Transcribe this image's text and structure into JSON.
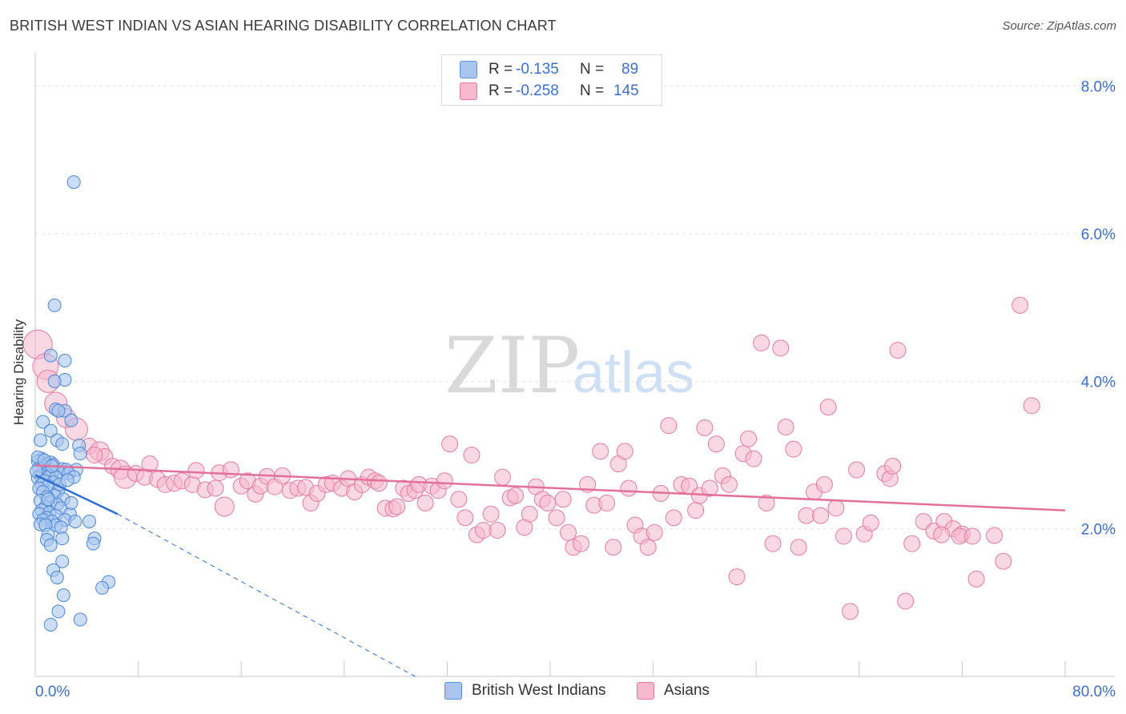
{
  "title": "BRITISH WEST INDIAN VS ASIAN HEARING DISABILITY CORRELATION CHART",
  "source": "Source: ZipAtlas.com",
  "watermark": {
    "zip": "ZIP",
    "atlas": "atlas"
  },
  "legend": {
    "rows": [
      {
        "r_label": "R =",
        "r_value": "-0.135",
        "n_label": "N =",
        "n_value": "89",
        "color": "#a9c6ef",
        "border": "#5a8fdc"
      },
      {
        "r_label": "R =",
        "r_value": "-0.258",
        "n_label": "N =",
        "n_value": "145",
        "color": "#f5b8cc",
        "border": "#e57aa0"
      }
    ]
  },
  "bottom_legend": [
    {
      "label": "British West Indians",
      "color": "#a9c6ef",
      "border": "#5a8fdc"
    },
    {
      "label": "Asians",
      "color": "#f5b8cc",
      "border": "#e57aa0"
    }
  ],
  "chart_data": {
    "type": "scatter",
    "title": "BRITISH WEST INDIAN VS ASIAN HEARING DISABILITY CORRELATION CHART",
    "xlabel": "",
    "ylabel": "Hearing Disability",
    "xlim": [
      0,
      80
    ],
    "ylim": [
      0,
      8.3
    ],
    "x_tick_labels": [
      "0.0%",
      "80.0%"
    ],
    "y_ticks": [
      2,
      4,
      6,
      8
    ],
    "y_tick_labels": [
      "2.0%",
      "4.0%",
      "6.0%",
      "8.0%"
    ],
    "colors": {
      "blue_fill": "#a9c6ef",
      "blue_stroke": "#4a86d8",
      "blue_line": "#2f6fd6",
      "pink_fill": "#f5b8cc",
      "pink_stroke": "#e57aa0",
      "pink_line": "#e2709a",
      "axis_text": "#3a6fd1",
      "grid": "#e3e3e3"
    },
    "series": [
      {
        "name": "British West Indians",
        "trend": {
          "x1": 0,
          "y1": 2.73,
          "x2": 6.4,
          "y2": 2.2,
          "dash_to_x": 29.5,
          "dash_to_y": 0
        },
        "points": [
          [
            3.0,
            6.7
          ],
          [
            1.5,
            5.03
          ],
          [
            2.3,
            4.28
          ],
          [
            1.2,
            4.35
          ],
          [
            2.3,
            4.02
          ],
          [
            1.5,
            4.0
          ],
          [
            1.6,
            3.62
          ],
          [
            2.3,
            3.6
          ],
          [
            1.8,
            3.6
          ],
          [
            2.8,
            3.47
          ],
          [
            0.6,
            3.45
          ],
          [
            1.2,
            3.33
          ],
          [
            0.4,
            3.2
          ],
          [
            1.7,
            3.2
          ],
          [
            2.1,
            3.15
          ],
          [
            3.4,
            3.13
          ],
          [
            3.5,
            3.02
          ],
          [
            0.5,
            2.95
          ],
          [
            0.2,
            2.92
          ],
          [
            1.2,
            2.9
          ],
          [
            0.8,
            2.88
          ],
          [
            1.4,
            2.87
          ],
          [
            0.6,
            2.85
          ],
          [
            0.3,
            2.82
          ],
          [
            2.1,
            2.81
          ],
          [
            2.4,
            2.8
          ],
          [
            1.8,
            2.77
          ],
          [
            1.3,
            2.76
          ],
          [
            0.9,
            2.75
          ],
          [
            0.4,
            2.72
          ],
          [
            1.1,
            2.71
          ],
          [
            1.6,
            2.7
          ],
          [
            3.2,
            2.8
          ],
          [
            0.2,
            2.69
          ],
          [
            0.7,
            2.65
          ],
          [
            1.4,
            2.63
          ],
          [
            2.6,
            2.75
          ],
          [
            3.0,
            2.7
          ],
          [
            0.5,
            2.6
          ],
          [
            1.0,
            2.58
          ],
          [
            0.3,
            2.55
          ],
          [
            1.8,
            2.52
          ],
          [
            0.6,
            2.5
          ],
          [
            1.5,
            2.45
          ],
          [
            0.9,
            2.43
          ],
          [
            2.2,
            2.4
          ],
          [
            0.4,
            2.38
          ],
          [
            1.2,
            2.36
          ],
          [
            1.7,
            2.33
          ],
          [
            0.8,
            2.3
          ],
          [
            2.0,
            2.28
          ],
          [
            0.5,
            2.25
          ],
          [
            1.1,
            2.22
          ],
          [
            2.7,
            2.2
          ],
          [
            0.3,
            2.2
          ],
          [
            1.6,
            2.18
          ],
          [
            0.9,
            2.15
          ],
          [
            2.3,
            2.12
          ],
          [
            0.6,
            2.12
          ],
          [
            1.3,
            2.1
          ],
          [
            3.1,
            2.1
          ],
          [
            4.2,
            2.1
          ],
          [
            0.4,
            2.06
          ],
          [
            1.6,
            2.05
          ],
          [
            0.8,
            2.05
          ],
          [
            2.0,
            2.02
          ],
          [
            1.0,
            1.92
          ],
          [
            4.6,
            1.87
          ],
          [
            2.1,
            1.87
          ],
          [
            0.9,
            1.85
          ],
          [
            1.2,
            1.78
          ],
          [
            4.5,
            1.8
          ],
          [
            2.1,
            1.56
          ],
          [
            1.4,
            1.44
          ],
          [
            1.7,
            1.34
          ],
          [
            5.7,
            1.28
          ],
          [
            5.2,
            1.2
          ],
          [
            2.2,
            1.1
          ],
          [
            1.8,
            0.88
          ],
          [
            3.5,
            0.77
          ],
          [
            1.2,
            0.7
          ],
          [
            0.2,
            2.97
          ],
          [
            1.9,
            2.6
          ],
          [
            0.7,
            2.93
          ],
          [
            1.3,
            2.85
          ],
          [
            2.5,
            2.66
          ],
          [
            0.1,
            2.78
          ],
          [
            1.0,
            2.4
          ],
          [
            2.8,
            2.35
          ]
        ]
      },
      {
        "name": "Asians",
        "trend": {
          "x1": 0,
          "y1": 2.86,
          "x2": 80,
          "y2": 2.25
        },
        "points": [
          [
            0.2,
            4.5,
            18
          ],
          [
            0.8,
            4.2,
            16
          ],
          [
            1.0,
            4.0,
            14
          ],
          [
            1.6,
            3.7,
            14
          ],
          [
            2.4,
            3.5,
            12
          ],
          [
            3.2,
            3.35,
            14
          ],
          [
            4.2,
            3.12,
            10
          ],
          [
            5.0,
            3.05,
            12
          ],
          [
            5.4,
            2.98,
            10
          ],
          [
            4.6,
            3.0,
            10
          ],
          [
            6.0,
            2.85,
            10
          ],
          [
            6.6,
            2.8,
            12
          ],
          [
            7.0,
            2.7,
            14
          ],
          [
            7.8,
            2.75,
            10
          ],
          [
            8.5,
            2.7,
            10
          ],
          [
            8.9,
            2.88,
            10
          ],
          [
            9.5,
            2.67,
            10
          ],
          [
            10.1,
            2.6,
            10
          ],
          [
            10.8,
            2.62,
            10
          ],
          [
            11.4,
            2.65,
            10
          ],
          [
            12.2,
            2.6,
            10
          ],
          [
            12.5,
            2.79,
            10
          ],
          [
            13.2,
            2.53,
            10
          ],
          [
            14.0,
            2.55,
            10
          ],
          [
            14.3,
            2.76,
            10
          ],
          [
            14.7,
            2.3,
            12
          ],
          [
            15.2,
            2.8,
            10
          ],
          [
            16.0,
            2.58,
            10
          ],
          [
            16.5,
            2.65,
            10
          ],
          [
            17.1,
            2.47,
            10
          ],
          [
            17.5,
            2.58,
            10
          ],
          [
            18.0,
            2.71,
            10
          ],
          [
            18.6,
            2.57,
            10
          ],
          [
            19.2,
            2.72,
            10
          ],
          [
            19.8,
            2.52,
            10
          ],
          [
            20.4,
            2.55,
            10
          ],
          [
            21.0,
            2.56,
            10
          ],
          [
            21.4,
            2.35,
            10
          ],
          [
            21.9,
            2.48,
            10
          ],
          [
            22.6,
            2.6,
            10
          ],
          [
            23.1,
            2.62,
            10
          ],
          [
            23.8,
            2.55,
            10
          ],
          [
            24.3,
            2.68,
            10
          ],
          [
            24.8,
            2.5,
            10
          ],
          [
            25.4,
            2.6,
            10
          ],
          [
            25.9,
            2.7,
            10
          ],
          [
            26.4,
            2.65,
            10
          ],
          [
            26.7,
            2.62,
            10
          ],
          [
            27.2,
            2.28,
            10
          ],
          [
            27.8,
            2.27,
            10
          ],
          [
            28.1,
            2.3,
            10
          ],
          [
            28.6,
            2.55,
            10
          ],
          [
            29.0,
            2.48,
            10
          ],
          [
            29.5,
            2.52,
            10
          ],
          [
            29.8,
            2.6,
            10
          ],
          [
            30.3,
            2.35,
            10
          ],
          [
            30.8,
            2.58,
            10
          ],
          [
            31.3,
            2.52,
            10
          ],
          [
            31.8,
            2.65,
            10
          ],
          [
            32.2,
            3.15,
            10
          ],
          [
            32.9,
            2.4,
            10
          ],
          [
            33.4,
            2.15,
            10
          ],
          [
            33.9,
            3.0,
            10
          ],
          [
            34.3,
            1.92,
            10
          ],
          [
            34.8,
            1.98,
            10
          ],
          [
            35.4,
            2.2,
            10
          ],
          [
            35.9,
            1.98,
            10
          ],
          [
            36.3,
            2.7,
            10
          ],
          [
            36.9,
            2.42,
            10
          ],
          [
            37.3,
            2.45,
            10
          ],
          [
            38.0,
            2.02,
            10
          ],
          [
            38.4,
            2.2,
            10
          ],
          [
            38.9,
            2.57,
            10
          ],
          [
            39.4,
            2.4,
            10
          ],
          [
            39.8,
            2.35,
            10
          ],
          [
            40.5,
            2.15,
            10
          ],
          [
            41.0,
            2.4,
            10
          ],
          [
            41.4,
            1.95,
            10
          ],
          [
            41.8,
            1.75,
            10
          ],
          [
            42.4,
            1.8,
            10
          ],
          [
            42.9,
            2.6,
            10
          ],
          [
            43.4,
            2.32,
            10
          ],
          [
            43.9,
            3.05,
            10
          ],
          [
            44.4,
            2.35,
            10
          ],
          [
            44.9,
            1.75,
            10
          ],
          [
            45.3,
            2.88,
            10
          ],
          [
            45.8,
            3.05,
            10
          ],
          [
            46.1,
            2.55,
            10
          ],
          [
            46.6,
            2.05,
            10
          ],
          [
            47.1,
            1.9,
            10
          ],
          [
            47.6,
            1.75,
            10
          ],
          [
            48.1,
            1.95,
            10
          ],
          [
            48.6,
            2.48,
            10
          ],
          [
            49.2,
            3.4,
            10
          ],
          [
            49.6,
            2.15,
            10
          ],
          [
            50.2,
            2.6,
            10
          ],
          [
            50.8,
            2.58,
            10
          ],
          [
            51.3,
            2.25,
            10
          ],
          [
            51.6,
            2.45,
            10
          ],
          [
            52.0,
            3.37,
            10
          ],
          [
            52.4,
            2.55,
            10
          ],
          [
            52.9,
            3.15,
            10
          ],
          [
            53.4,
            2.72,
            10
          ],
          [
            53.9,
            2.6,
            10
          ],
          [
            54.5,
            1.35,
            10
          ],
          [
            55.0,
            3.02,
            10
          ],
          [
            55.4,
            3.22,
            10
          ],
          [
            55.8,
            2.95,
            10
          ],
          [
            56.4,
            4.52,
            10
          ],
          [
            56.8,
            2.35,
            10
          ],
          [
            57.3,
            1.8,
            10
          ],
          [
            57.9,
            4.45,
            10
          ],
          [
            58.3,
            3.38,
            10
          ],
          [
            58.9,
            3.08,
            10
          ],
          [
            59.3,
            1.75,
            10
          ],
          [
            59.9,
            2.18,
            10
          ],
          [
            60.5,
            2.5,
            10
          ],
          [
            61.0,
            2.18,
            10
          ],
          [
            61.3,
            2.6,
            10
          ],
          [
            61.6,
            3.65,
            10
          ],
          [
            62.2,
            2.28,
            10
          ],
          [
            62.8,
            1.9,
            10
          ],
          [
            63.3,
            0.88,
            10
          ],
          [
            63.8,
            2.8,
            10
          ],
          [
            64.4,
            1.93,
            10
          ],
          [
            64.9,
            2.08,
            10
          ],
          [
            66.0,
            2.75,
            10
          ],
          [
            66.4,
            2.68,
            10
          ],
          [
            66.6,
            2.85,
            10
          ],
          [
            67.0,
            4.42,
            10
          ],
          [
            67.6,
            1.02,
            10
          ],
          [
            68.1,
            1.8,
            10
          ],
          [
            69.0,
            2.1,
            10
          ],
          [
            69.8,
            1.97,
            10
          ],
          [
            70.6,
            2.1,
            10
          ],
          [
            71.3,
            2.0,
            10
          ],
          [
            72.0,
            1.93,
            10
          ],
          [
            73.1,
            1.32,
            10
          ],
          [
            74.5,
            1.91,
            10
          ],
          [
            75.2,
            1.56,
            10
          ],
          [
            76.5,
            5.03,
            10
          ],
          [
            77.4,
            3.67,
            10
          ],
          [
            70.4,
            1.92,
            10
          ],
          [
            71.8,
            1.9,
            10
          ],
          [
            72.8,
            1.9,
            10
          ]
        ]
      }
    ]
  }
}
